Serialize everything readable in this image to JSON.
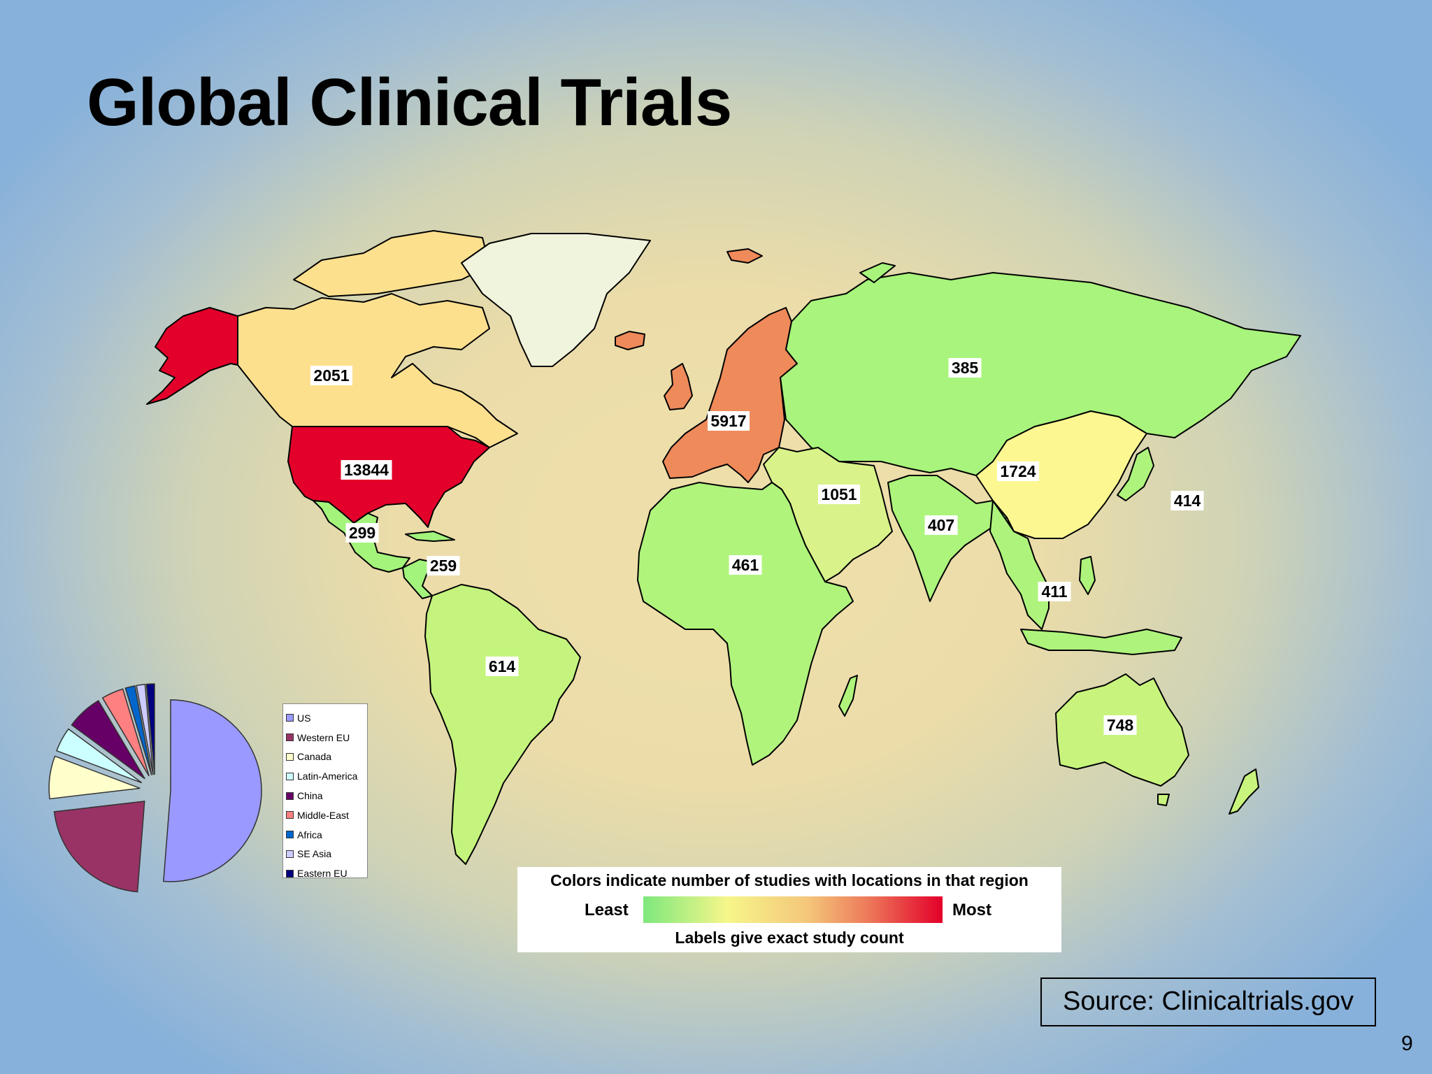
{
  "title": "Global Clinical Trials",
  "map": {
    "regions": [
      {
        "name": "US",
        "label": "13844",
        "color": "#e3002a"
      },
      {
        "name": "Western EU",
        "label": "5917",
        "color": "#ef8a5a"
      },
      {
        "name": "Canada",
        "label": "2051",
        "color": "#fde08e"
      },
      {
        "name": "China",
        "label": "1724",
        "color": "#fdf792"
      },
      {
        "name": "Middle East",
        "label": "1051",
        "color": "#d9f38a"
      },
      {
        "name": "Australia",
        "label": "748",
        "color": "#c8f47e"
      },
      {
        "name": "South America",
        "label": "614",
        "color": "#c4f47d"
      },
      {
        "name": "Africa",
        "label": "461",
        "color": "#b0f47c"
      },
      {
        "name": "Japan",
        "label": "414",
        "color": "#aef47c"
      },
      {
        "name": "SE Asia",
        "label": "411",
        "color": "#aef47c"
      },
      {
        "name": "India",
        "label": "407",
        "color": "#acf47c"
      },
      {
        "name": "Russia",
        "label": "385",
        "color": "#a8f47c"
      },
      {
        "name": "Mexico",
        "label": "299",
        "color": "#a4f47c"
      },
      {
        "name": "Central America",
        "label": "259",
        "color": "#a2f47c"
      },
      {
        "name": "Alaska",
        "label": "",
        "color": "#e3002a"
      },
      {
        "name": "Greenland",
        "label": "",
        "color": "#f1f4dc"
      }
    ],
    "scale": {
      "title": "Colors indicate number of studies with locations in that region",
      "least": "Least",
      "most": "Most",
      "note": "Labels give exact study count",
      "colors": [
        "#7de87d",
        "#f6f68a",
        "#f4c67a",
        "#ed7a5a",
        "#e3002a"
      ]
    }
  },
  "chart_data": {
    "type": "pie",
    "categories": [
      "US",
      "Western EU",
      "Canada",
      "Latin-America",
      "China",
      "Middle-East",
      "Africa",
      "SE Asia",
      "Eastern EU"
    ],
    "values": [
      13844,
      5917,
      2051,
      1172,
      1724,
      1051,
      461,
      411,
      385
    ],
    "colors": [
      "#9999ff",
      "#993366",
      "#ffffcc",
      "#ccffff",
      "#660066",
      "#ff8080",
      "#0066cc",
      "#ccccff",
      "#000080"
    ],
    "legend": "right"
  },
  "source": "Source: Clinicaltrials.gov",
  "page_number": "9"
}
